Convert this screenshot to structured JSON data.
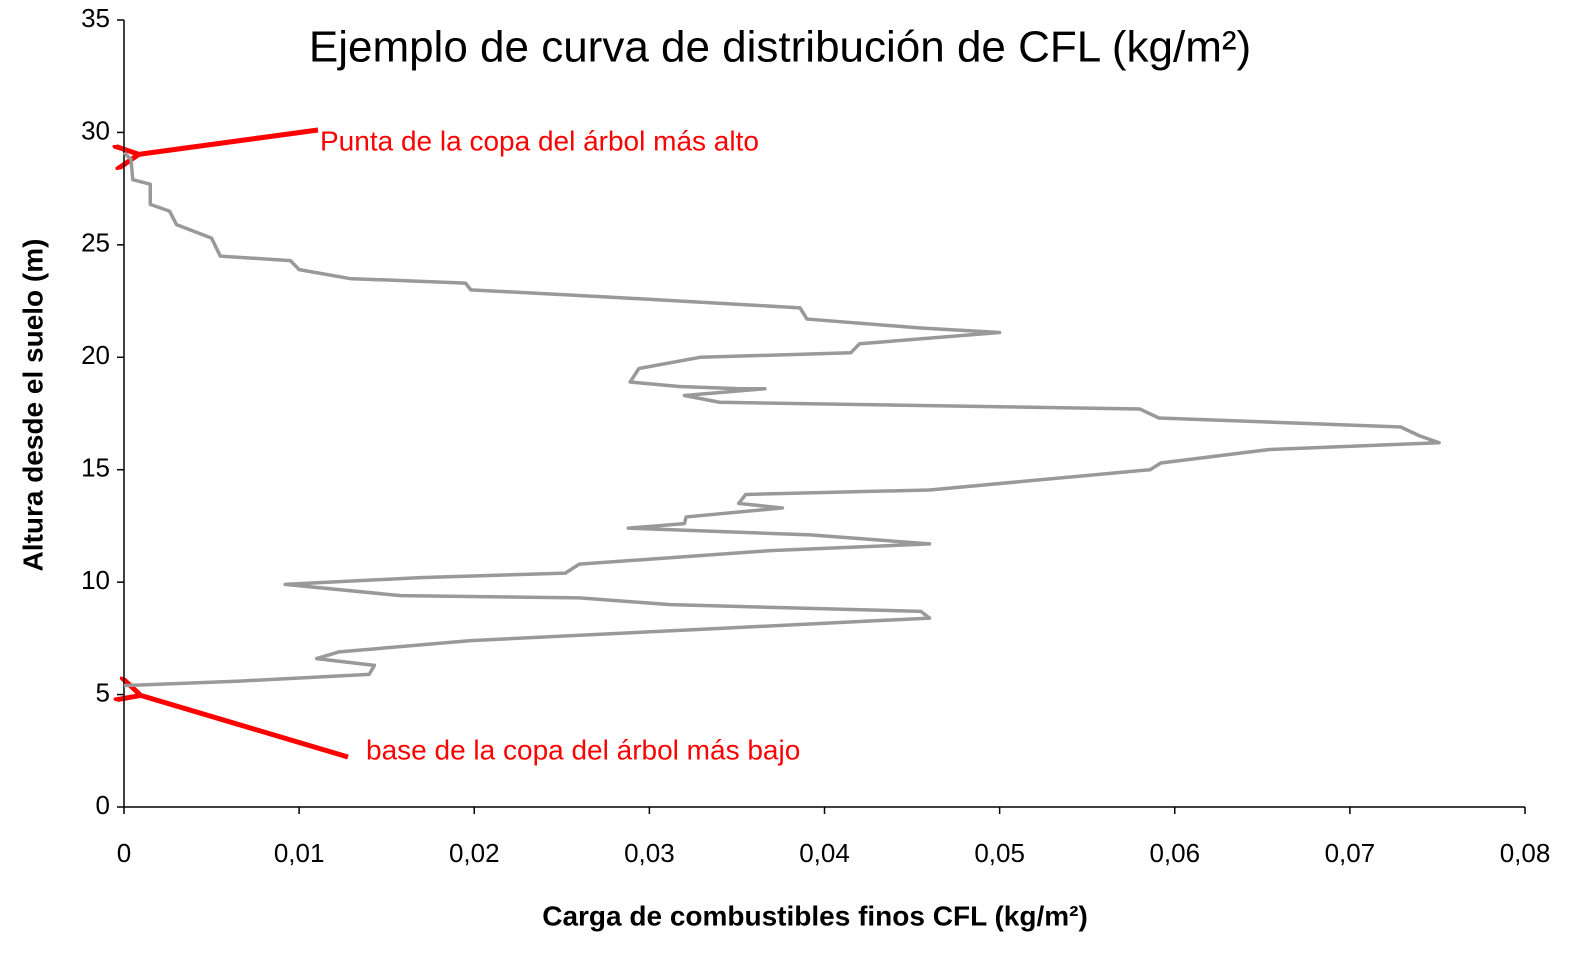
{
  "chart_data": {
    "type": "line",
    "title": "Ejemplo de curva de distribución de CFL (kg/m²)",
    "x_label": "Carga de combustibles finos CFL (kg/m²)",
    "y_label": "Altura desde el suelo (m)",
    "color": "#999999",
    "annotations": [
      "Punta de la copa del árbol más alto",
      "base de la copa del árbol más bajo"
    ],
    "annotation_color": "#ff0000",
    "xlim": [
      0,
      0.08
    ],
    "ylim": [
      0,
      35
    ],
    "xticks": [
      0,
      {
        "value": 0.01,
        "label": "0,01"
      },
      {
        "value": 0.02,
        "label": "0,02"
      },
      {
        "value": 0.03,
        "label": "0,03"
      },
      {
        "value": 0.04,
        "label": "0,04"
      },
      {
        "value": 0.05,
        "label": "0,05"
      },
      {
        "value": 0.06,
        "label": "0,06"
      },
      {
        "value": 0.07,
        "label": "0,07"
      },
      {
        "value": 0.08,
        "label": "0,08"
      }
    ],
    "yticks": [
      0,
      5,
      10,
      15,
      20,
      25,
      30,
      35
    ],
    "x": [
      0,
      0.0004,
      0.0005,
      0.0015,
      0.0015,
      0.0026,
      0.003,
      0.005,
      0.0055,
      0.0095,
      0.01,
      0.0129,
      0.0195,
      0.0198,
      0.0272,
      0.0386,
      0.039,
      0.0455,
      0.05,
      0.042,
      0.0415,
      0.0329,
      0.0294,
      0.0289,
      0.0317,
      0.0352,
      0.0366,
      0.032,
      0.034,
      0.05,
      0.058,
      0.0591,
      0.0729,
      0.074,
      0.0751,
      0.0654,
      0.0592,
      0.0586,
      0.046,
      0.0355,
      0.0351,
      0.0376,
      0.0321,
      0.032,
      0.0288,
      0.0392,
      0.046,
      0.0369,
      0.026,
      0.0252,
      0.0169,
      0.0092,
      0.0158,
      0.026,
      0.0312,
      0.0455,
      0.046,
      0.0329,
      0.0198,
      0.0123,
      0.011,
      0.0143,
      0.014,
      0.0066,
      0
    ],
    "values": [
      29.1,
      28.8,
      27.9,
      27.7,
      26.8,
      26.5,
      25.9,
      25.3,
      24.5,
      24.3,
      23.9,
      23.5,
      23.3,
      23.0,
      22.7,
      22.2,
      21.7,
      21.3,
      21.1,
      20.6,
      20.2,
      20.0,
      19.5,
      18.9,
      18.7,
      18.6,
      18.6,
      18.3,
      18.0,
      17.8,
      17.7,
      17.3,
      16.9,
      16.5,
      16.2,
      15.9,
      15.3,
      15.0,
      14.1,
      13.9,
      13.5,
      13.3,
      12.9,
      12.6,
      12.4,
      12.1,
      11.7,
      11.4,
      10.8,
      10.4,
      10.2,
      9.9,
      9.4,
      9.3,
      9.0,
      8.7,
      8.4,
      7.9,
      7.4,
      6.9,
      6.6,
      6.3,
      5.9,
      5.6,
      5.4
    ]
  }
}
